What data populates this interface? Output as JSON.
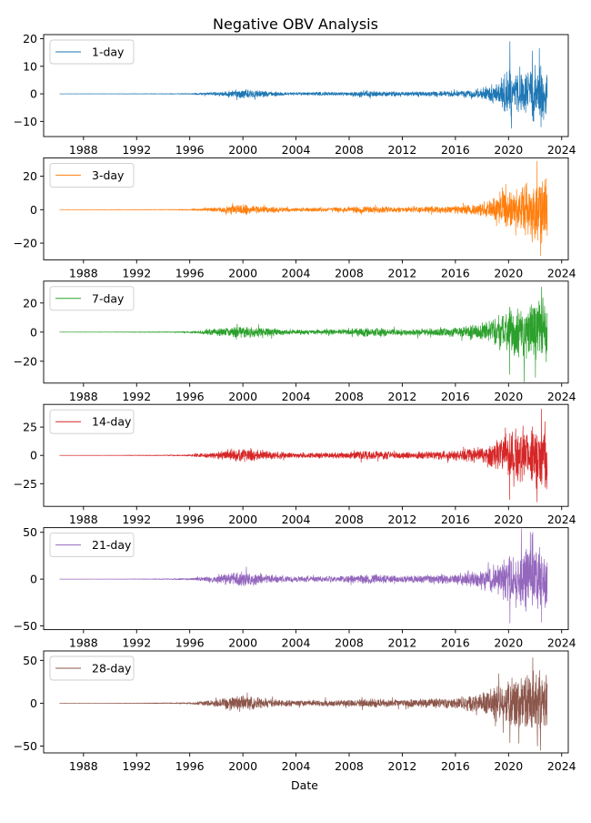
{
  "chart_data": {
    "type": "line",
    "title": "Negative OBV Analysis",
    "xlabel": "Date",
    "x_range": [
      "1985-01-01",
      "2024-07-01"
    ],
    "x_ticks": [
      "1988",
      "1992",
      "1996",
      "2000",
      "2004",
      "2008",
      "2012",
      "2016",
      "2020",
      "2024"
    ],
    "series_start": "1986-03-13",
    "series_end": "2022-11-30",
    "legend_position": "upper left",
    "panels": [
      {
        "name": "1-day",
        "color": "#1f77b4",
        "ylim": [
          -15.5,
          21.5
        ],
        "yticks": [
          20,
          10,
          0,
          -10
        ],
        "envelope": [
          [
            1986,
            0.02
          ],
          [
            1990,
            0.05
          ],
          [
            1994,
            0.1
          ],
          [
            1996,
            0.2
          ],
          [
            1998,
            0.8
          ],
          [
            2000,
            1.8
          ],
          [
            2002,
            1.0
          ],
          [
            2004,
            0.6
          ],
          [
            2008,
            0.8
          ],
          [
            2009,
            1.4
          ],
          [
            2012,
            0.8
          ],
          [
            2016,
            1.2
          ],
          [
            2018,
            2.2
          ],
          [
            2019,
            4.0
          ],
          [
            2020,
            9.0
          ],
          [
            2021,
            8.0
          ],
          [
            2022,
            11.0
          ],
          [
            2022.9,
            11.0
          ]
        ],
        "peaks": [
          [
            "2020-02-10",
            19.0
          ],
          [
            "2020-03-20",
            -12.5
          ],
          [
            "2022-05-01",
            16.5
          ],
          [
            "2022-06-15",
            -12.0
          ]
        ]
      },
      {
        "name": "3-day",
        "color": "#ff7f0e",
        "ylim": [
          -30,
          31
        ],
        "yticks": [
          20,
          0,
          -20
        ],
        "envelope": [
          [
            1986,
            0.05
          ],
          [
            1990,
            0.1
          ],
          [
            1994,
            0.2
          ],
          [
            1996,
            0.4
          ],
          [
            1998,
            1.6
          ],
          [
            2000,
            3.5
          ],
          [
            2002,
            2.0
          ],
          [
            2004,
            1.2
          ],
          [
            2008,
            1.6
          ],
          [
            2009,
            2.6
          ],
          [
            2012,
            1.6
          ],
          [
            2016,
            2.4
          ],
          [
            2018,
            4.5
          ],
          [
            2019,
            8.0
          ],
          [
            2020,
            14.0
          ],
          [
            2021,
            15.0
          ],
          [
            2022,
            20.0
          ],
          [
            2022.9,
            20.0
          ]
        ],
        "peaks": [
          [
            "2022-03-01",
            29.0
          ],
          [
            "2022-06-01",
            -27.5
          ]
        ]
      },
      {
        "name": "7-day",
        "color": "#2ca02c",
        "ylim": [
          -35,
          35
        ],
        "yticks": [
          20,
          0,
          -20
        ],
        "envelope": [
          [
            1986,
            0.05
          ],
          [
            1990,
            0.1
          ],
          [
            1994,
            0.3
          ],
          [
            1996,
            0.6
          ],
          [
            1998,
            2.5
          ],
          [
            2000,
            5.0
          ],
          [
            2002,
            3.0
          ],
          [
            2004,
            1.8
          ],
          [
            2008,
            2.2
          ],
          [
            2009,
            3.5
          ],
          [
            2012,
            2.2
          ],
          [
            2016,
            3.5
          ],
          [
            2018,
            6.5
          ],
          [
            2019,
            11.0
          ],
          [
            2020,
            18.0
          ],
          [
            2021,
            20.0
          ],
          [
            2022,
            24.0
          ],
          [
            2022.9,
            24.0
          ]
        ],
        "peaks": [
          [
            "2022-07-01",
            31.0
          ],
          [
            "2020-02-01",
            -29.0
          ],
          [
            "2022-01-10",
            -31.0
          ]
        ]
      },
      {
        "name": "14-day",
        "color": "#d62728",
        "ylim": [
          -45,
          45
        ],
        "yticks": [
          25,
          0,
          -25
        ],
        "envelope": [
          [
            1986,
            0.05
          ],
          [
            1990,
            0.1
          ],
          [
            1994,
            0.4
          ],
          [
            1996,
            0.8
          ],
          [
            1998,
            3.5
          ],
          [
            2000,
            7.0
          ],
          [
            2002,
            4.0
          ],
          [
            2004,
            2.5
          ],
          [
            2008,
            3.0
          ],
          [
            2009,
            4.5
          ],
          [
            2012,
            3.0
          ],
          [
            2016,
            4.5
          ],
          [
            2018,
            8.0
          ],
          [
            2019,
            14.0
          ],
          [
            2020,
            24.0
          ],
          [
            2021,
            28.0
          ],
          [
            2022,
            32.0
          ],
          [
            2022.9,
            32.0
          ]
        ],
        "peaks": [
          [
            "2022-07-01",
            41.0
          ],
          [
            "2020-02-01",
            -39.0
          ],
          [
            "2022-03-01",
            -41.0
          ]
        ]
      },
      {
        "name": "21-day",
        "color": "#9467bd",
        "ylim": [
          -54,
          55
        ],
        "yticks": [
          50,
          0,
          -50
        ],
        "envelope": [
          [
            1986,
            0.05
          ],
          [
            1990,
            0.1
          ],
          [
            1994,
            0.5
          ],
          [
            1996,
            1.0
          ],
          [
            1998,
            4.5
          ],
          [
            2000,
            9.0
          ],
          [
            2002,
            5.0
          ],
          [
            2004,
            3.0
          ],
          [
            2008,
            4.0
          ],
          [
            2009,
            5.5
          ],
          [
            2012,
            4.0
          ],
          [
            2016,
            6.0
          ],
          [
            2018,
            10.0
          ],
          [
            2019,
            17.0
          ],
          [
            2020,
            28.0
          ],
          [
            2021,
            34.0
          ],
          [
            2022,
            38.0
          ],
          [
            2022.9,
            36.0
          ]
        ],
        "peaks": [
          [
            "2021-11-01",
            50.0
          ],
          [
            "2020-02-10",
            -47.0
          ],
          [
            "2022-07-01",
            -46.0
          ]
        ]
      },
      {
        "name": "28-day",
        "color": "#8c564b",
        "ylim": [
          -58,
          61
        ],
        "yticks": [
          50,
          0,
          -50
        ],
        "envelope": [
          [
            1986,
            0.05
          ],
          [
            1990,
            0.1
          ],
          [
            1994,
            0.5
          ],
          [
            1996,
            1.0
          ],
          [
            1998,
            5.0
          ],
          [
            2000,
            10.0
          ],
          [
            2002,
            6.0
          ],
          [
            2004,
            3.5
          ],
          [
            2008,
            4.5
          ],
          [
            2009,
            6.0
          ],
          [
            2012,
            4.5
          ],
          [
            2016,
            7.0
          ],
          [
            2018,
            12.0
          ],
          [
            2019,
            20.0
          ],
          [
            2020,
            30.0
          ],
          [
            2021,
            38.0
          ],
          [
            2022,
            42.0
          ],
          [
            2022.9,
            40.0
          ]
        ],
        "peaks": [
          [
            "2021-11-01",
            53.0
          ],
          [
            "2020-02-10",
            -46.0
          ],
          [
            "2022-06-01",
            -55.0
          ]
        ]
      }
    ]
  }
}
